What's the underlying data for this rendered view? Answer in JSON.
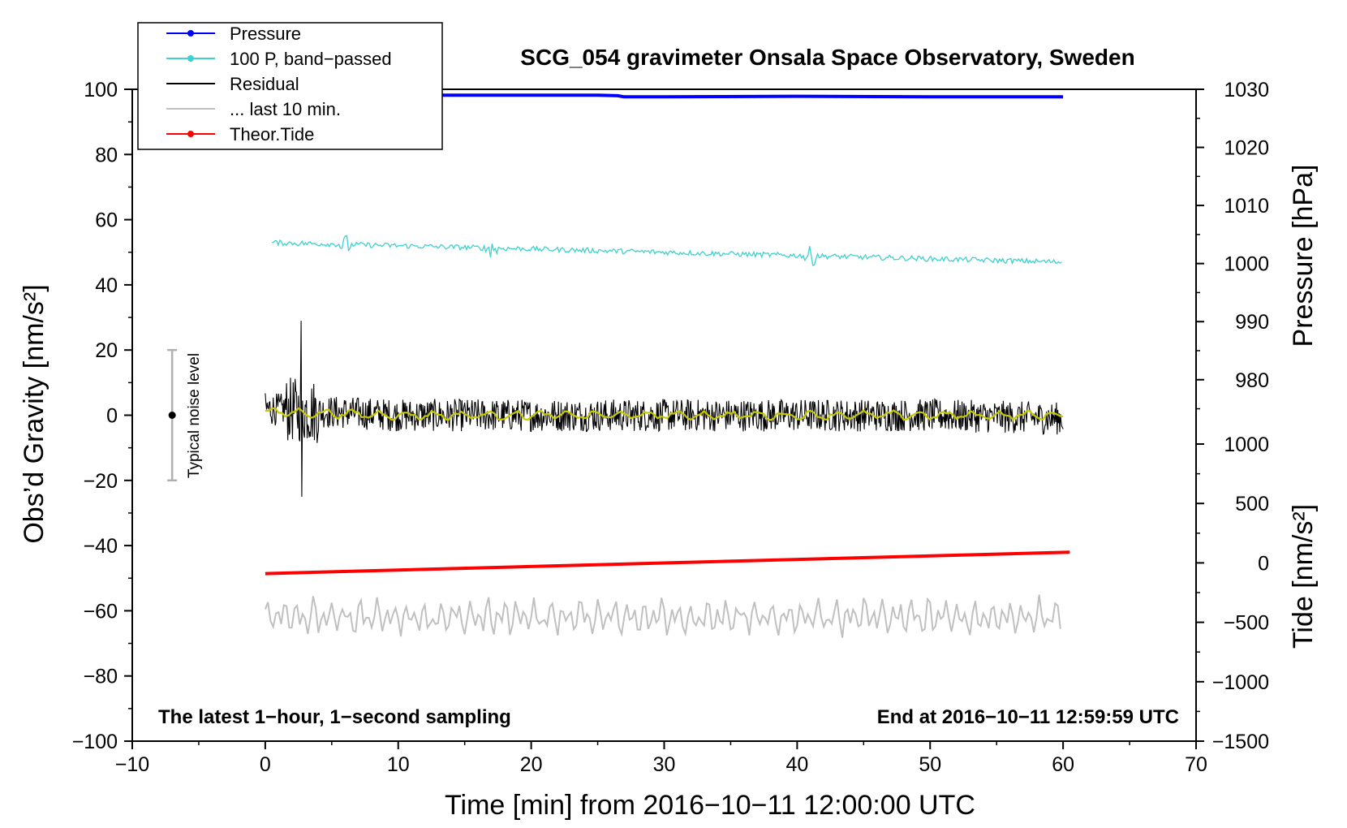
{
  "chart_data": {
    "type": "line",
    "title": "SCG_054 gravimeter Onsala Space Observatory, Sweden",
    "xlabel": "Time [min] from 2016−10−11 12:00:00 UTC",
    "ylabel": "Obs’d Gravity [nm/s²]",
    "y2label_pressure": "Pressure [hPa]",
    "y2label_tide": "Tide [nm/s²]",
    "xlim": [
      -10,
      70
    ],
    "ylim": [
      -100,
      100
    ],
    "pressure_axis_range": [
      972,
      1030
    ],
    "tide_axis_range": [
      -1500,
      1000
    ],
    "x_ticks": [
      "−10",
      "0",
      "10",
      "20",
      "30",
      "40",
      "50",
      "60",
      "70"
    ],
    "y_ticks": [
      "−100",
      "−80",
      "−60",
      "−40",
      "−20",
      "0",
      "20",
      "40",
      "60",
      "80",
      "100"
    ],
    "pressure_ticks": [
      "980",
      "990",
      "1000",
      "1010",
      "1020",
      "1030"
    ],
    "tide_ticks": [
      "−1500",
      "−1000",
      "−500",
      "0",
      "500",
      "1000"
    ],
    "annotation_left": "The latest 1−hour, 1−second sampling",
    "annotation_right": "End at 2016−10−11 12:59:59 UTC",
    "noise_label": "Typical noise level",
    "noise_level": {
      "x": -7,
      "center": 0,
      "low": -20,
      "high": 20
    },
    "legend": [
      {
        "label": "Pressure",
        "color": "#0000ff",
        "marker": true
      },
      {
        "label": "100 P, band−passed",
        "color": "#40d0d0",
        "marker": true
      },
      {
        "label": "Residual",
        "color": "#000000",
        "marker": false
      },
      {
        "label": "... last 10 min.",
        "color": "#c0c0c0",
        "marker": false
      },
      {
        "label": "Theor.Tide",
        "color": "#ff0000",
        "marker": true
      }
    ],
    "series": [
      {
        "name": "Pressure",
        "axis": "pressure",
        "color": "#0000ff",
        "x": [
          0,
          10,
          20,
          25,
          26.5,
          27,
          30,
          40,
          50,
          60
        ],
        "values": [
          1029.0,
          1029.0,
          1029.0,
          1029.0,
          1028.9,
          1028.7,
          1028.7,
          1028.8,
          1028.7,
          1028.7
        ]
      },
      {
        "name": "100 P, band−passed",
        "axis": "gravity",
        "color": "#40d0d0",
        "x": [
          0,
          10,
          20,
          30,
          40,
          50,
          60
        ],
        "values": [
          53,
          52,
          51,
          50,
          49,
          48,
          47
        ]
      },
      {
        "name": "Residual",
        "axis": "gravity",
        "color": "#000000",
        "x": [
          0,
          10,
          20,
          30,
          40,
          50,
          60
        ],
        "values": [
          2,
          0,
          0,
          0,
          0,
          0,
          -1
        ]
      },
      {
        "name": "... last 10 min.",
        "axis": "gravity",
        "color": "#c0c0c0",
        "x": [
          0,
          10,
          20,
          30,
          40,
          50,
          60
        ],
        "values": [
          -62,
          -62,
          -62,
          -62,
          -62,
          -62,
          -62
        ]
      },
      {
        "name": "Theor.Tide",
        "axis": "tide",
        "color": "#ff0000",
        "x": [
          0,
          60.5
        ],
        "values": [
          -90,
          90
        ]
      },
      {
        "name": "Residual (smoothed)",
        "axis": "gravity",
        "color": "#c8c800",
        "x": [
          0,
          10,
          20,
          30,
          40,
          50,
          60
        ],
        "values": [
          1,
          0,
          0,
          0,
          0,
          0,
          0
        ]
      }
    ]
  }
}
